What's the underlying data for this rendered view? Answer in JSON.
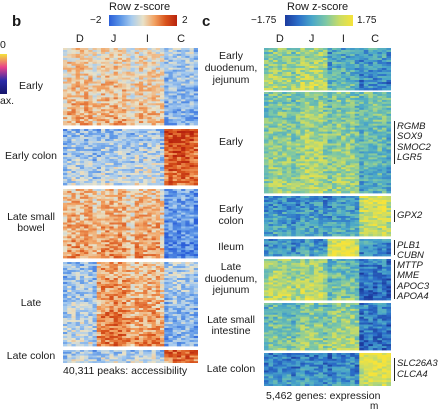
{
  "edge_left": {
    "top_value": "0",
    "bottom_value": "ax."
  },
  "panel_b": {
    "letter": "b",
    "scale": {
      "title": "Row z-score",
      "min_label": "−2",
      "max_label": "2",
      "colors": [
        "#2b5fd9",
        "#5b95e6",
        "#a7cbee",
        "#e9e2c8",
        "#f2a262",
        "#d9541c",
        "#b8230e"
      ]
    },
    "columns": [
      "D",
      "J",
      "I",
      "C"
    ],
    "clusters": [
      {
        "label": "Early",
        "col_means": [
          0.35,
          0.35,
          0.2,
          -0.75
        ]
      },
      {
        "label": "Early colon",
        "col_means": [
          -0.6,
          -0.55,
          -0.45,
          1.35
        ]
      },
      {
        "label": "Late small\nbowel",
        "col_means": [
          0.55,
          0.55,
          0.5,
          -1.3
        ]
      },
      {
        "label": "Late",
        "col_means": [
          -0.55,
          0.85,
          0.6,
          -0.75
        ]
      },
      {
        "label": "Late colon",
        "col_means": [
          -0.5,
          -0.45,
          -0.35,
          1.15
        ]
      }
    ],
    "caption": "40,311 peaks: accessibility"
  },
  "panel_c": {
    "letter": "c",
    "scale": {
      "title": "Row z-score",
      "min_label": "−1.75",
      "max_label": "1.75",
      "colors": [
        "#1c3a9e",
        "#2c6fc9",
        "#4aa7c9",
        "#7cc7a6",
        "#c9dc66",
        "#f6e33a"
      ]
    },
    "columns": [
      "D",
      "J",
      "I",
      "C"
    ],
    "clusters": [
      {
        "label": "Early\nduodenum,\njejunum",
        "genes": [],
        "col_means": [
          0.7,
          0.9,
          -0.1,
          -0.5
        ]
      },
      {
        "label": "Early",
        "genes": [
          "RGMB",
          "SOX9",
          "SMOC2",
          "LGR5"
        ],
        "col_means": [
          0.55,
          0.75,
          0.55,
          0.1
        ]
      },
      {
        "label": "Early\ncolon",
        "genes": [
          "GPX2"
        ],
        "col_means": [
          -0.4,
          -0.4,
          -0.3,
          1.2
        ]
      },
      {
        "label": "Ileum",
        "genes": [
          "PLB1",
          "CUBN"
        ],
        "col_means": [
          -0.5,
          -0.4,
          1.5,
          -0.6
        ]
      },
      {
        "label": "Late\nduodenum,\njejunum",
        "genes": [
          "MTTP",
          "MME",
          "APOC3",
          "APOA4"
        ],
        "col_means": [
          0.9,
          0.9,
          0.2,
          -1.0
        ]
      },
      {
        "label": "Late small\nintestine",
        "genes": [],
        "col_means": [
          0.3,
          0.5,
          0.7,
          -0.9
        ]
      },
      {
        "label": "Late colon",
        "genes": [
          "SLC26A3",
          "CLCA4"
        ],
        "col_means": [
          -0.6,
          -0.6,
          -0.6,
          1.4
        ]
      }
    ],
    "caption": "5,462 genes: expression",
    "footer_mark": "m"
  }
}
